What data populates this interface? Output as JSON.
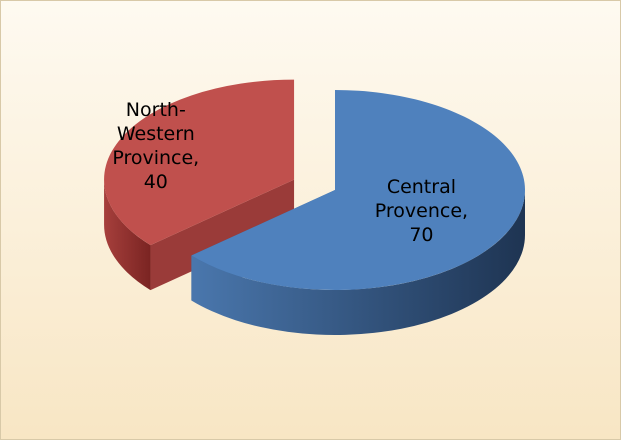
{
  "chart_data": {
    "type": "pie3d",
    "values": [
      70,
      40
    ],
    "value_labels": [
      "Central Provence, 70",
      "North-Western Province, 40"
    ],
    "colors": [
      "#4f81bd",
      "#c0504d"
    ]
  }
}
